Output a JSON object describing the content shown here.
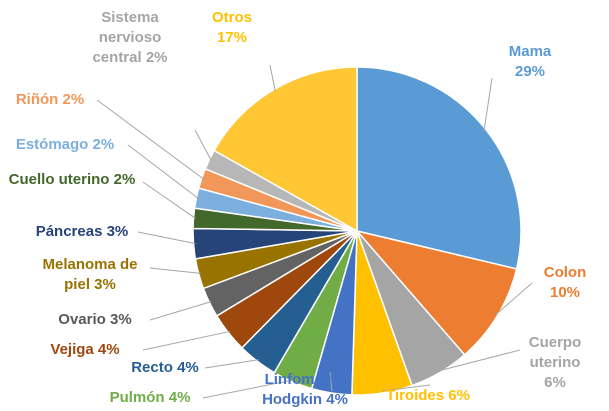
{
  "chart_data": {
    "type": "pie",
    "categories": [
      "Mama",
      "Colon",
      "Cuerpo uterino",
      "Tiroides",
      "Linfoma no Hodgkin",
      "Pulmón",
      "Recto",
      "Vejiga",
      "Ovario",
      "Melanoma de piel",
      "Páncreas",
      "Cuello uterino",
      "Estómago",
      "Riñón",
      "Sistema nervioso central",
      "Otros"
    ],
    "values": [
      29,
      10,
      6,
      6,
      4,
      4,
      4,
      4,
      3,
      3,
      3,
      2,
      2,
      2,
      2,
      17
    ],
    "value_labels": [
      "29%",
      "10%",
      "6%",
      "6%",
      "4%",
      "4%",
      "4%",
      "4%",
      "3%",
      "3%",
      "3%",
      "2%",
      "2%",
      "2%",
      "2%",
      "17%"
    ],
    "colors": [
      "#5b9bd5",
      "#ed7d31",
      "#a5a5a5",
      "#ffc000",
      "#4472c4",
      "#70ad47",
      "#255e91",
      "#9e480e",
      "#636363",
      "#997300",
      "#264478",
      "#43682b",
      "#7cafdd",
      "#f1975a",
      "#b7b7b7",
      "#ffc733"
    ]
  }
}
